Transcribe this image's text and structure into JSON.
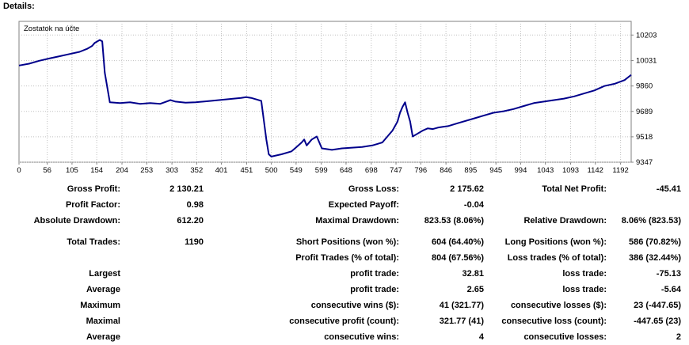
{
  "heading": "Details:",
  "chart_data": {
    "type": "line",
    "title": "Zostatok na účte",
    "xlim": [
      0,
      1213
    ],
    "ylim": [
      9347,
      10295
    ],
    "y_ticks": [
      10203,
      10031,
      9860,
      9689,
      9518,
      9347
    ],
    "x_ticks": [
      0,
      56,
      105,
      154,
      204,
      253,
      303,
      352,
      401,
      451,
      500,
      549,
      599,
      648,
      698,
      747,
      796,
      846,
      895,
      945,
      994,
      1043,
      1093,
      1142,
      1192
    ],
    "grid": true,
    "line_color": "#00008b",
    "series": [
      {
        "x": [
          0,
          20,
          40,
          60,
          80,
          100,
          120,
          135,
          145,
          150,
          160,
          165,
          170,
          180,
          200,
          220,
          240,
          260,
          280,
          300,
          310,
          330,
          350,
          380,
          410,
          440,
          450,
          460,
          470,
          480,
          490,
          495,
          500,
          520,
          540,
          550,
          560,
          565,
          570,
          580,
          590,
          600,
          620,
          640,
          660,
          680,
          700,
          710,
          720,
          730,
          740,
          750,
          755,
          760,
          765,
          770,
          775,
          780,
          790,
          800,
          810,
          820,
          830,
          840,
          850,
          870,
          900,
          920,
          940,
          960,
          980,
          1000,
          1020,
          1040,
          1060,
          1080,
          1100,
          1120,
          1140,
          1160,
          1180,
          1200,
          1213
        ],
        "y": [
          9998,
          10010,
          10030,
          10045,
          10060,
          10075,
          10090,
          10110,
          10130,
          10150,
          10170,
          10160,
          9950,
          9750,
          9745,
          9750,
          9740,
          9745,
          9740,
          9765,
          9755,
          9748,
          9750,
          9760,
          9770,
          9780,
          9785,
          9780,
          9770,
          9760,
          9500,
          9400,
          9385,
          9400,
          9420,
          9450,
          9480,
          9500,
          9460,
          9500,
          9520,
          9440,
          9430,
          9440,
          9445,
          9450,
          9460,
          9470,
          9480,
          9520,
          9560,
          9620,
          9680,
          9720,
          9750,
          9680,
          9620,
          9520,
          9540,
          9560,
          9575,
          9570,
          9580,
          9585,
          9590,
          9610,
          9640,
          9660,
          9680,
          9690,
          9705,
          9725,
          9745,
          9755,
          9765,
          9775,
          9790,
          9810,
          9830,
          9860,
          9875,
          9900,
          9935
        ]
      }
    ]
  },
  "stats": [
    {
      "c1l": "Gross Profit:",
      "c1v": "2 130.21",
      "c2l": "Gross Loss:",
      "c2v": "2 175.62",
      "c3l": "Total Net Profit:",
      "c3v": "-45.41"
    },
    {
      "c1l": "Profit Factor:",
      "c1v": "0.98",
      "c2l": "Expected Payoff:",
      "c2v": "-0.04",
      "c3l": "",
      "c3v": ""
    },
    {
      "c1l": "Absolute Drawdown:",
      "c1v": "612.20",
      "c2l": "Maximal Drawdown:",
      "c2v": "823.53 (8.06%)",
      "c3l": "Relative Drawdown:",
      "c3v": "8.06% (823.53)"
    },
    {
      "c1l": "Total Trades:",
      "c1v": "1190",
      "c2l": "Short Positions (won %):",
      "c2v": "604 (64.40%)",
      "c3l": "Long Positions (won %):",
      "c3v": "586 (70.82%)"
    },
    {
      "c1l": "",
      "c1v": "",
      "c2l": "Profit Trades (% of total):",
      "c2v": "804 (67.56%)",
      "c3l": "Loss trades (% of total):",
      "c3v": "386 (32.44%)"
    },
    {
      "c1l": "Largest",
      "c1v": "",
      "c2l": "profit trade:",
      "c2v": "32.81",
      "c3l": "loss trade:",
      "c3v": "-75.13"
    },
    {
      "c1l": "Average",
      "c1v": "",
      "c2l": "profit trade:",
      "c2v": "2.65",
      "c3l": "loss trade:",
      "c3v": "-5.64"
    },
    {
      "c1l": "Maximum",
      "c1v": "",
      "c2l": "consecutive wins ($):",
      "c2v": "41 (321.77)",
      "c3l": "consecutive losses ($):",
      "c3v": "23 (-447.65)"
    },
    {
      "c1l": "Maximal",
      "c1v": "",
      "c2l": "consecutive profit (count):",
      "c2v": "321.77 (41)",
      "c3l": "consecutive loss (count):",
      "c3v": "-447.65 (23)"
    },
    {
      "c1l": "Average",
      "c1v": "",
      "c2l": "consecutive wins:",
      "c2v": "4",
      "c3l": "consecutive losses:",
      "c3v": "2"
    }
  ]
}
